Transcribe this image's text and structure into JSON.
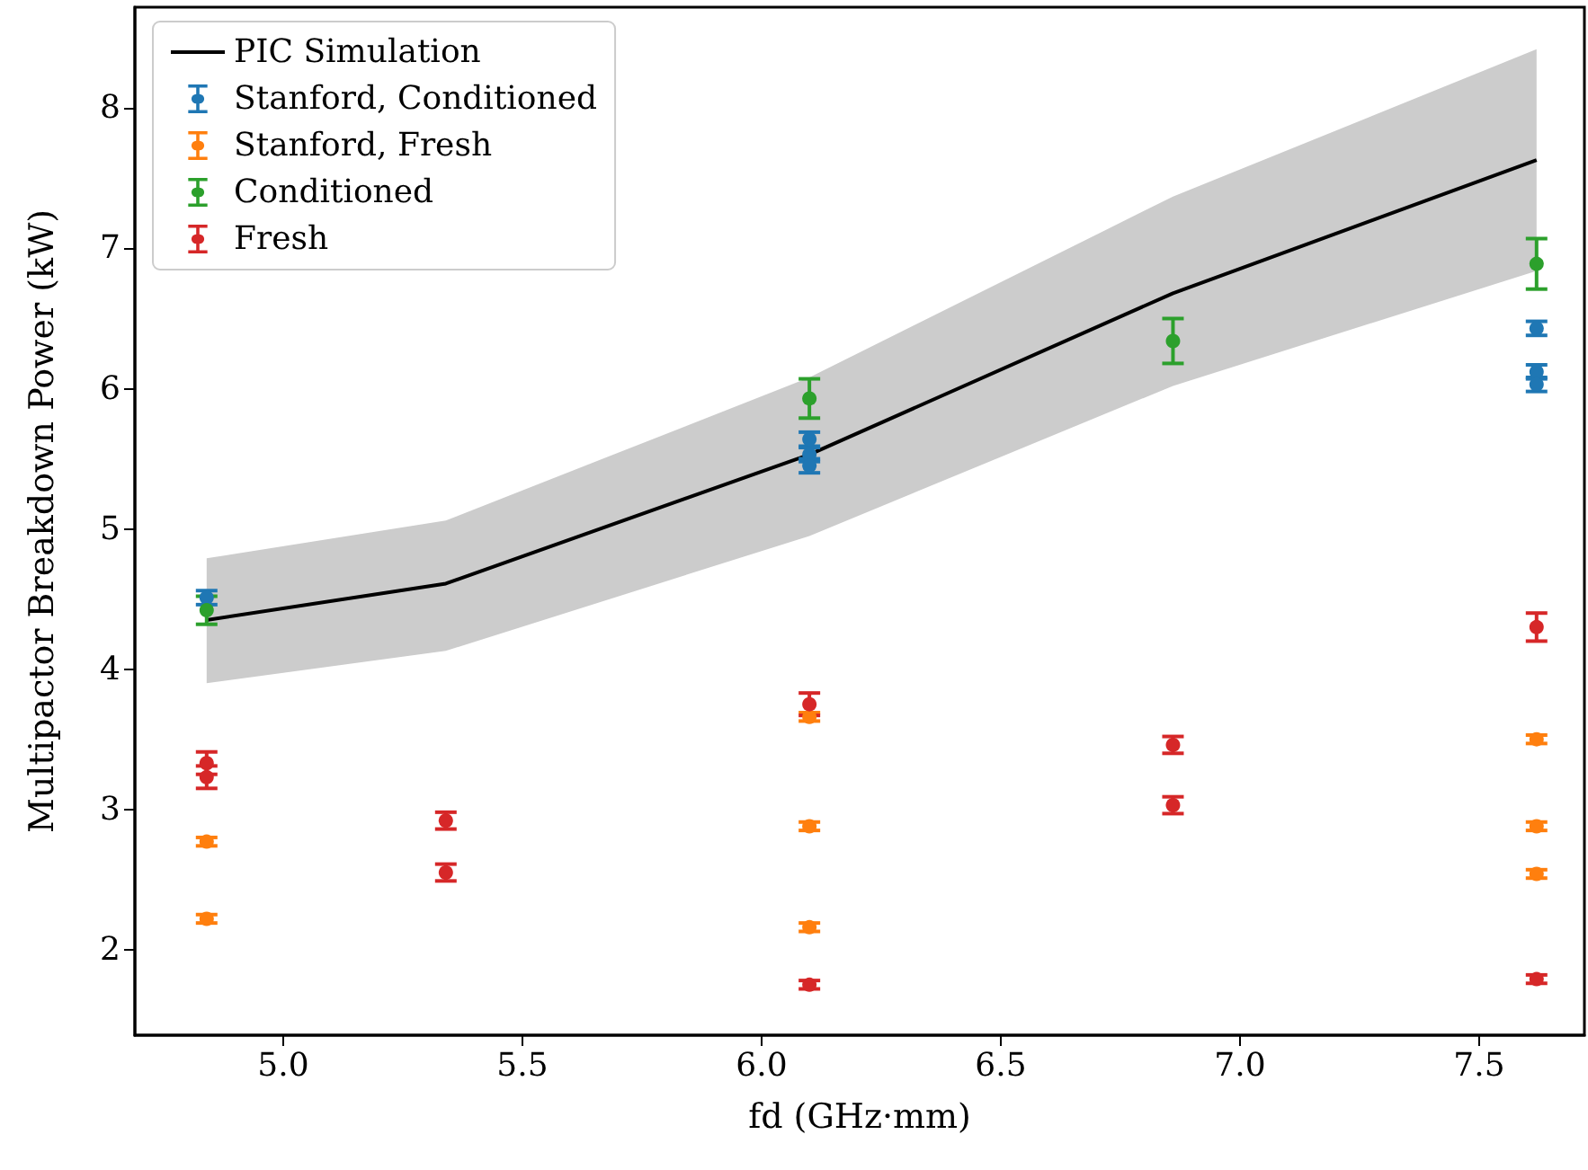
{
  "chart_data": {
    "type": "scatter",
    "xlabel": "fd (GHz·mm)",
    "ylabel": "Multipactor Breakdown Power (kW)",
    "xlim": [
      4.69,
      7.72
    ],
    "ylim": [
      1.39,
      8.72
    ],
    "xticks": [
      {
        "value": 5,
        "label": "5.0"
      },
      {
        "value": 5.5,
        "label": "5.5"
      },
      {
        "value": 6,
        "label": "6.0"
      },
      {
        "value": 6.5,
        "label": "6.5"
      },
      {
        "value": 7,
        "label": "7.0"
      },
      {
        "value": 7.5,
        "label": "7.5"
      }
    ],
    "yticks": [
      2,
      3,
      4,
      5,
      6,
      7,
      8
    ],
    "grid": false,
    "legend": "top left",
    "marker": "circle",
    "series": [
      {
        "name": "PIC Simulation",
        "type": "line",
        "marker": "none",
        "color": "#000000",
        "x": [
          4.84,
          5.34,
          6.1,
          6.86,
          7.62
        ],
        "values": [
          4.35,
          4.61,
          5.53,
          6.68,
          7.63
        ],
        "lower": [
          3.9,
          4.13,
          4.95,
          6.02,
          6.84
        ],
        "upper": [
          4.79,
          5.06,
          6.08,
          7.37,
          8.42
        ]
      },
      {
        "name": "Stanford, Conditioned",
        "color": "#1f77b4",
        "x": [
          4.84,
          6.1,
          6.1,
          6.1,
          7.62,
          7.62,
          7.62
        ],
        "values": [
          4.51,
          5.64,
          5.53,
          5.45,
          6.43,
          6.12,
          6.03
        ],
        "errors": [
          0.05,
          0.05,
          0.05,
          0.05,
          0.05,
          0.05,
          0.05
        ]
      },
      {
        "name": "Stanford, Fresh",
        "color": "#ff7f0e",
        "x": [
          4.84,
          4.84,
          6.1,
          6.1,
          6.1,
          7.62,
          7.62,
          7.62
        ],
        "values": [
          2.77,
          2.22,
          3.66,
          2.88,
          2.16,
          3.5,
          2.88,
          2.54
        ],
        "errors": [
          0.03,
          0.03,
          0.03,
          0.03,
          0.03,
          0.03,
          0.03,
          0.03
        ]
      },
      {
        "name": "Conditioned",
        "color": "#2ca02c",
        "x": [
          4.84,
          6.1,
          6.86,
          7.62
        ],
        "values": [
          4.42,
          5.93,
          6.34,
          6.89
        ],
        "errors": [
          0.1,
          0.14,
          0.16,
          0.18
        ]
      },
      {
        "name": "Fresh",
        "color": "#d62728",
        "x": [
          4.84,
          4.84,
          5.34,
          5.34,
          6.1,
          6.1,
          6.86,
          6.86,
          7.62,
          7.62
        ],
        "values": [
          3.33,
          3.23,
          2.92,
          2.55,
          3.75,
          1.75,
          3.46,
          3.03,
          4.3,
          1.79
        ],
        "errors": [
          0.08,
          0.08,
          0.06,
          0.06,
          0.08,
          0.03,
          0.06,
          0.06,
          0.1,
          0.03
        ]
      }
    ]
  }
}
